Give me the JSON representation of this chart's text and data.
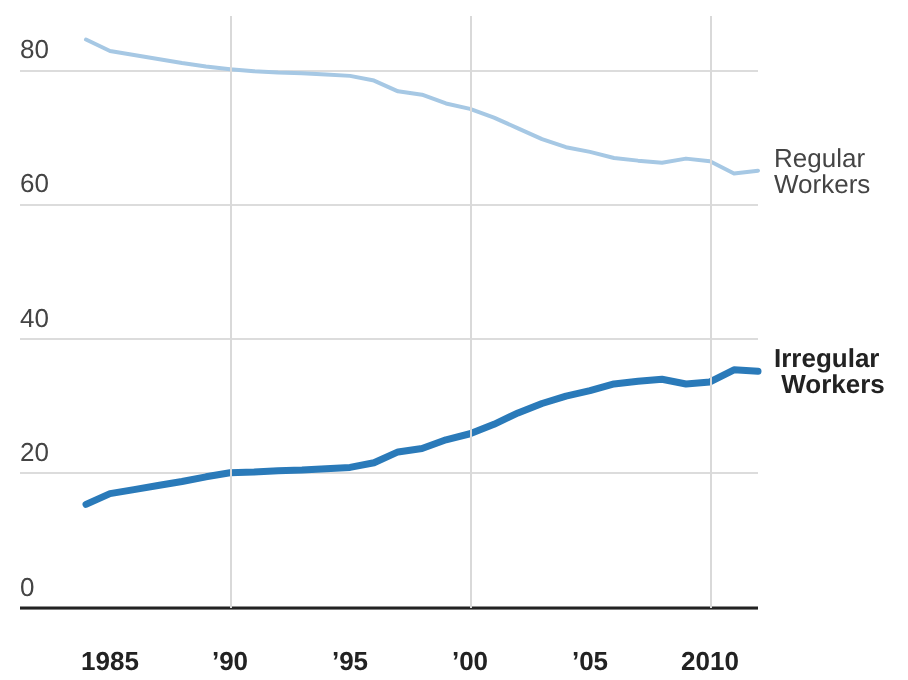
{
  "chart_data": {
    "type": "line",
    "x": [
      1984,
      1985,
      1986,
      1987,
      1988,
      1989,
      1990,
      1991,
      1992,
      1993,
      1994,
      1995,
      1996,
      1997,
      1998,
      1999,
      2000,
      2001,
      2002,
      2003,
      2004,
      2005,
      2006,
      2007,
      2008,
      2009,
      2010,
      2011,
      2012
    ],
    "series": [
      {
        "name": "Regular Workers",
        "color": "#a6c8e4",
        "values": [
          84.5,
          82.8,
          82.2,
          81.6,
          81.0,
          80.5,
          80.1,
          79.8,
          79.6,
          79.5,
          79.3,
          79.1,
          78.4,
          76.8,
          76.3,
          75.0,
          74.2,
          72.9,
          71.3,
          69.7,
          68.5,
          67.8,
          66.9,
          66.5,
          66.2,
          66.8,
          66.4,
          64.6,
          65.0
        ]
      },
      {
        "name": "Irregular Workers",
        "color": "#2a7ab9",
        "values": [
          15.4,
          17.0,
          17.6,
          18.2,
          18.8,
          19.5,
          20.1,
          20.2,
          20.4,
          20.5,
          20.7,
          20.9,
          21.6,
          23.2,
          23.7,
          25.0,
          25.9,
          27.3,
          29.0,
          30.4,
          31.5,
          32.3,
          33.3,
          33.7,
          34.0,
          33.3,
          33.6,
          35.4,
          35.2
        ]
      }
    ],
    "xlim": [
      1981.25,
      2012
    ],
    "xticks": [
      1985,
      {
        "value": 1990,
        "label": "’90"
      },
      {
        "value": 1995,
        "label": "’95"
      },
      {
        "value": 2000,
        "label": "’00"
      },
      {
        "value": 2005,
        "label": "’05"
      },
      2010
    ],
    "ylim": [
      0,
      88
    ],
    "yticks": [
      0,
      20,
      40,
      60,
      80
    ],
    "grid": "y",
    "legend": false,
    "marker": "none",
    "line_style": "solid",
    "ref_lines": [
      {
        "axis": "x",
        "value": 1990,
        "color": "#d9d9d9"
      },
      {
        "axis": "x",
        "value": 2000,
        "color": "#d9d9d9"
      },
      {
        "axis": "x",
        "value": 2010,
        "color": "#d9d9d9"
      }
    ]
  }
}
